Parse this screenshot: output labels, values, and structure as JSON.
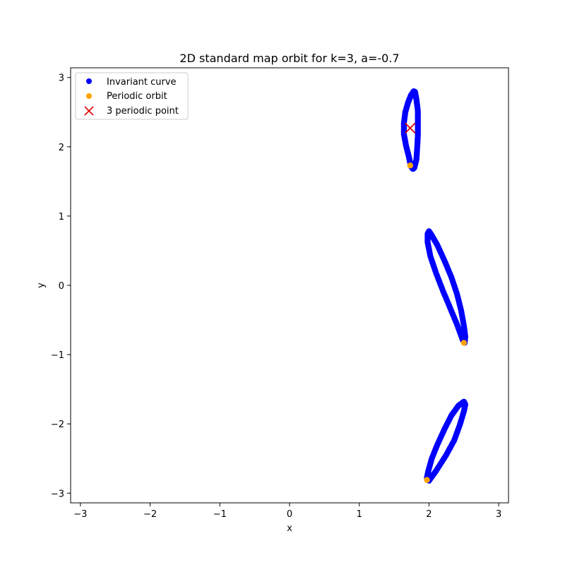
{
  "chart_data": {
    "type": "scatter",
    "title": "2D standard map orbit for k=3, a=-0.7",
    "xlabel": "x",
    "ylabel": "y",
    "xlim": [
      -3.14,
      3.14
    ],
    "ylim": [
      -3.14,
      3.14
    ],
    "xticks": [
      -3,
      -2,
      -1,
      0,
      1,
      2,
      3
    ],
    "yticks": [
      -3,
      -2,
      -1,
      0,
      1,
      2,
      3
    ],
    "xtick_labels": [
      "−3",
      "−2",
      "−1",
      "0",
      "1",
      "2",
      "3"
    ],
    "ytick_labels": [
      "−3",
      "−2",
      "−1",
      "0",
      "1",
      "2",
      "3"
    ],
    "grid": false,
    "legend_position": "top-left",
    "series": [
      {
        "name": "Invariant curve",
        "kind": "curve-points",
        "color": "#0000ff",
        "loops": [
          [
            [
              1.74,
              1.72
            ],
            [
              1.71,
              1.86
            ],
            [
              1.67,
              2.02
            ],
            [
              1.64,
              2.18
            ],
            [
              1.64,
              2.34
            ],
            [
              1.66,
              2.5
            ],
            [
              1.7,
              2.64
            ],
            [
              1.74,
              2.74
            ],
            [
              1.78,
              2.8
            ],
            [
              1.8,
              2.79
            ],
            [
              1.82,
              2.68
            ],
            [
              1.84,
              2.52
            ],
            [
              1.84,
              2.34
            ],
            [
              1.84,
              2.16
            ],
            [
              1.83,
              1.98
            ],
            [
              1.82,
              1.82
            ],
            [
              1.79,
              1.7
            ],
            [
              1.77,
              1.68
            ],
            [
              1.74,
              1.72
            ]
          ],
          [
            [
              2.0,
              0.78
            ],
            [
              2.04,
              0.72
            ],
            [
              2.12,
              0.58
            ],
            [
              2.22,
              0.36
            ],
            [
              2.32,
              0.12
            ],
            [
              2.4,
              -0.12
            ],
            [
              2.46,
              -0.36
            ],
            [
              2.5,
              -0.58
            ],
            [
              2.52,
              -0.74
            ],
            [
              2.51,
              -0.83
            ],
            [
              2.48,
              -0.78
            ],
            [
              2.4,
              -0.56
            ],
            [
              2.3,
              -0.32
            ],
            [
              2.2,
              -0.08
            ],
            [
              2.1,
              0.18
            ],
            [
              2.02,
              0.42
            ],
            [
              1.98,
              0.62
            ],
            [
              1.98,
              0.74
            ],
            [
              2.0,
              0.78
            ]
          ],
          [
            [
              2.0,
              -2.82
            ],
            [
              2.1,
              -2.68
            ],
            [
              2.24,
              -2.46
            ],
            [
              2.36,
              -2.24
            ],
            [
              2.44,
              -2.02
            ],
            [
              2.5,
              -1.82
            ],
            [
              2.52,
              -1.72
            ],
            [
              2.5,
              -1.68
            ],
            [
              2.42,
              -1.74
            ],
            [
              2.32,
              -1.88
            ],
            [
              2.22,
              -2.08
            ],
            [
              2.12,
              -2.3
            ],
            [
              2.04,
              -2.5
            ],
            [
              1.99,
              -2.68
            ],
            [
              1.97,
              -2.78
            ],
            [
              2.0,
              -2.82
            ]
          ]
        ]
      },
      {
        "name": "Periodic orbit",
        "kind": "points",
        "color": "#ffa500",
        "points": [
          [
            1.73,
            1.73
          ],
          [
            2.5,
            -0.83
          ],
          [
            1.97,
            -2.81
          ]
        ]
      },
      {
        "name": "3 periodic point",
        "kind": "x-marker",
        "color": "#dd0000",
        "points": [
          [
            1.73,
            2.27
          ]
        ]
      }
    ]
  }
}
